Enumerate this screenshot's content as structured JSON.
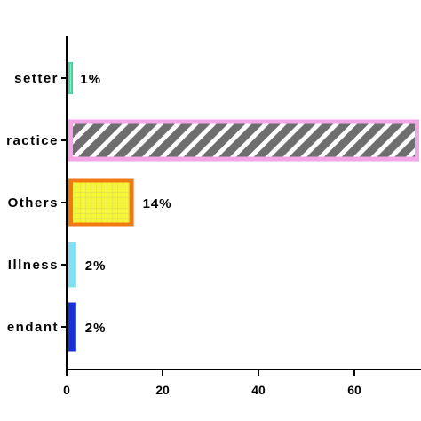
{
  "chart_data": {
    "type": "bar",
    "orientation": "horizontal",
    "categories": [
      "setter",
      "ractice",
      "Others",
      "Illness",
      "endant"
    ],
    "values": [
      1,
      75,
      14,
      2,
      2
    ],
    "data_labels": [
      "1%",
      "",
      "14%",
      "2%",
      "2%"
    ],
    "xticks": [
      "0",
      "20",
      "40",
      "60"
    ],
    "xlim": [
      0,
      73
    ],
    "title": "",
    "xlabel": "",
    "ylabel": "",
    "grid": false,
    "bar_styles": [
      {
        "fill": "#8fe8c4",
        "stroke": "#4fd1a0",
        "pattern": "solid"
      },
      {
        "fill": "#6e6e6e",
        "stroke": "#f2a6e6",
        "pattern": "diagonal-stripes",
        "stripe": "#ffffff"
      },
      {
        "fill": "#f5f53a",
        "stroke": "#f07a10",
        "pattern": "grid",
        "stripe": "#d9d94a"
      },
      {
        "fill": "#bdf4f4",
        "stroke": "#7fe0f0",
        "pattern": "checker",
        "stripe": "#8a8a8a"
      },
      {
        "fill": "#1a2fd6",
        "stroke": "#1a2fd6",
        "pattern": "dots",
        "stripe": "#e01a1a"
      }
    ]
  }
}
